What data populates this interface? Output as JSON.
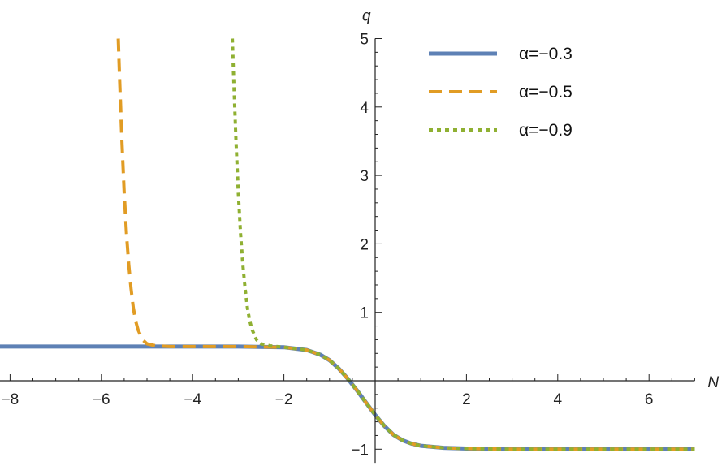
{
  "chart_data": {
    "type": "line",
    "xlabel": "N",
    "ylabel": "q",
    "xlim": [
      -8.25,
      7.0
    ],
    "ylim": [
      -1.2,
      5.0
    ],
    "x_ticks": [
      -8,
      -6,
      -4,
      -2,
      2,
      4,
      6
    ],
    "y_ticks": [
      -1,
      1,
      2,
      3,
      4,
      5
    ],
    "legend_position": "top-right",
    "grid": false,
    "series": [
      {
        "name": "α=−0.3",
        "color": "#5e81b5",
        "dash": "solid",
        "points": [
          [
            -8.25,
            0.5
          ],
          [
            -5,
            0.5
          ],
          [
            -3,
            0.5
          ],
          [
            -2,
            0.49
          ],
          [
            -1.5,
            0.45
          ],
          [
            -1.2,
            0.38
          ],
          [
            -1,
            0.3
          ],
          [
            -0.8,
            0.18
          ],
          [
            -0.6,
            0.03
          ],
          [
            -0.4,
            -0.14
          ],
          [
            -0.2,
            -0.32
          ],
          [
            0,
            -0.5
          ],
          [
            0.2,
            -0.66
          ],
          [
            0.4,
            -0.79
          ],
          [
            0.6,
            -0.87
          ],
          [
            0.8,
            -0.92
          ],
          [
            1.0,
            -0.95
          ],
          [
            1.5,
            -0.98
          ],
          [
            2.0,
            -0.99
          ],
          [
            3,
            -1.0
          ],
          [
            7.0,
            -1.0
          ]
        ]
      },
      {
        "name": "α=−0.5",
        "color": "#e19c24",
        "dash": "dashed",
        "points": [
          [
            -5.63,
            5.0
          ],
          [
            -5.6,
            4.4
          ],
          [
            -5.55,
            3.5
          ],
          [
            -5.5,
            2.75
          ],
          [
            -5.45,
            2.15
          ],
          [
            -5.4,
            1.7
          ],
          [
            -5.35,
            1.35
          ],
          [
            -5.3,
            1.07
          ],
          [
            -5.25,
            0.88
          ],
          [
            -5.2,
            0.75
          ],
          [
            -5.1,
            0.6
          ],
          [
            -5.0,
            0.54
          ],
          [
            -4.8,
            0.51
          ],
          [
            -4.5,
            0.5
          ],
          [
            -3,
            0.5
          ],
          [
            -2,
            0.49
          ],
          [
            -1.5,
            0.45
          ],
          [
            -1.2,
            0.38
          ],
          [
            -1,
            0.3
          ],
          [
            -0.8,
            0.18
          ],
          [
            -0.6,
            0.03
          ],
          [
            -0.4,
            -0.14
          ],
          [
            -0.2,
            -0.32
          ],
          [
            0,
            -0.5
          ],
          [
            0.2,
            -0.66
          ],
          [
            0.4,
            -0.79
          ],
          [
            0.6,
            -0.87
          ],
          [
            0.8,
            -0.92
          ],
          [
            1.0,
            -0.95
          ],
          [
            1.5,
            -0.98
          ],
          [
            2.0,
            -0.99
          ],
          [
            3,
            -1.0
          ],
          [
            7.0,
            -1.0
          ]
        ]
      },
      {
        "name": "α=−0.9",
        "color": "#8fb032",
        "dash": "dotted",
        "points": [
          [
            -3.13,
            5.0
          ],
          [
            -3.1,
            4.4
          ],
          [
            -3.05,
            3.5
          ],
          [
            -3.0,
            2.75
          ],
          [
            -2.95,
            2.15
          ],
          [
            -2.9,
            1.7
          ],
          [
            -2.85,
            1.35
          ],
          [
            -2.8,
            1.07
          ],
          [
            -2.75,
            0.88
          ],
          [
            -2.7,
            0.75
          ],
          [
            -2.6,
            0.6
          ],
          [
            -2.5,
            0.54
          ],
          [
            -2.3,
            0.51
          ],
          [
            -2.0,
            0.49
          ],
          [
            -1.5,
            0.45
          ],
          [
            -1.2,
            0.38
          ],
          [
            -1,
            0.3
          ],
          [
            -0.8,
            0.18
          ],
          [
            -0.6,
            0.03
          ],
          [
            -0.4,
            -0.14
          ],
          [
            -0.2,
            -0.32
          ],
          [
            0,
            -0.5
          ],
          [
            0.2,
            -0.66
          ],
          [
            0.4,
            -0.79
          ],
          [
            0.6,
            -0.87
          ],
          [
            0.8,
            -0.92
          ],
          [
            1.0,
            -0.95
          ],
          [
            1.5,
            -0.98
          ],
          [
            2.0,
            -0.99
          ],
          [
            3,
            -1.0
          ],
          [
            7.0,
            -1.0
          ]
        ]
      }
    ]
  }
}
